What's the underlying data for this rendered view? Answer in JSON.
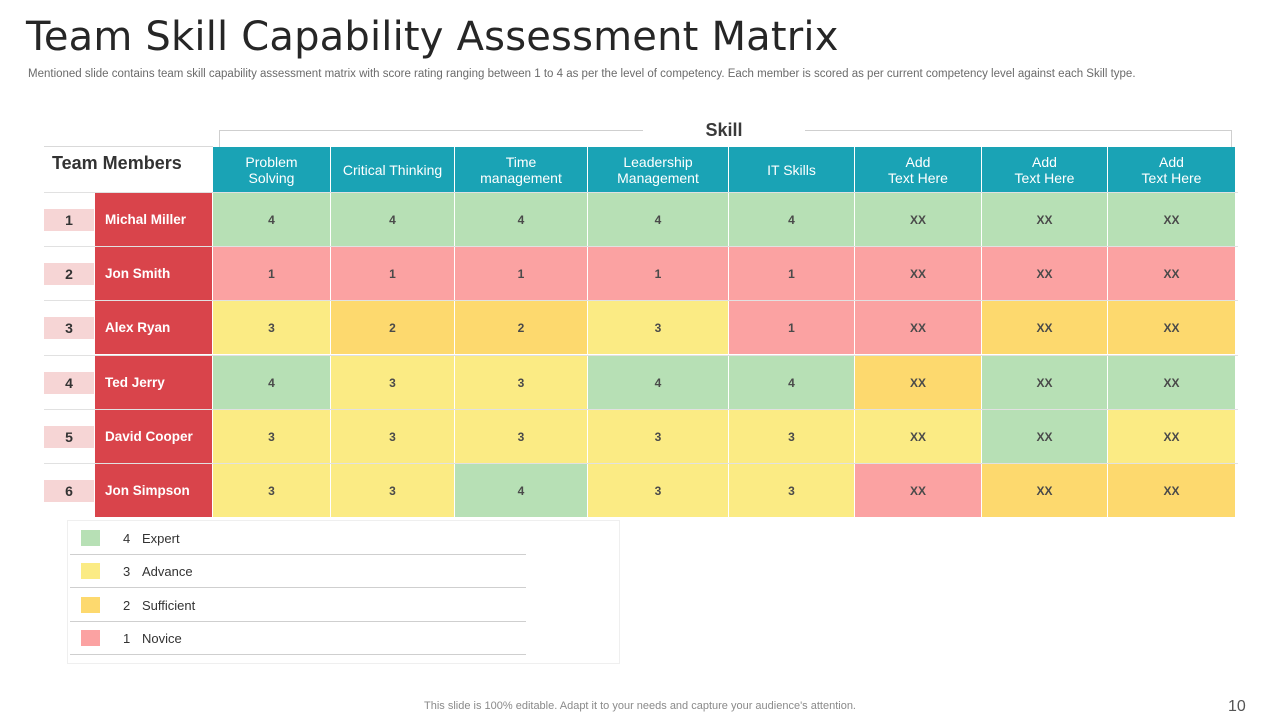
{
  "slide": {
    "title": "Team Skill Capability Assessment Matrix",
    "subtitle": "Mentioned slide contains team skill capability assessment matrix with score rating ranging between 1 to 4 as per the level of competency. Each member is scored as per current competency level against each Skill type.",
    "footer": "This slide is 100% editable. Adapt it to your needs and capture your audience's attention.",
    "page_number": "10"
  },
  "matrix": {
    "skill_label": "Skill",
    "members_header": "Team Members",
    "columns": [
      "Problem\nSolving",
      "Critical Thinking",
      "Time\nmanagement",
      "Leadership\nManagement",
      "IT Skills",
      "Add\nText Here",
      "Add\nText Here",
      "Add\nText Here"
    ],
    "rows": [
      {
        "num": "1",
        "name": "Michal Miller",
        "scores": [
          "4",
          "4",
          "4",
          "4",
          "4",
          "XX",
          "XX",
          "XX"
        ],
        "levels": [
          "4",
          "4",
          "4",
          "4",
          "4",
          "4",
          "4",
          "4"
        ]
      },
      {
        "num": "2",
        "name": "Jon Smith",
        "scores": [
          "1",
          "1",
          "1",
          "1",
          "1",
          "XX",
          "XX",
          "XX"
        ],
        "levels": [
          "1",
          "1",
          "1",
          "1",
          "1",
          "1",
          "1",
          "1"
        ]
      },
      {
        "num": "3",
        "name": "Alex Ryan",
        "scores": [
          "3",
          "2",
          "2",
          "3",
          "1",
          "XX",
          "XX",
          "XX"
        ],
        "levels": [
          "3",
          "2",
          "2",
          "3",
          "1",
          "1",
          "2",
          "2"
        ]
      },
      {
        "num": "4",
        "name": "Ted Jerry",
        "scores": [
          "4",
          "3",
          "3",
          "4",
          "4",
          "XX",
          "XX",
          "XX"
        ],
        "levels": [
          "4",
          "3",
          "3",
          "4",
          "4",
          "2",
          "4",
          "4"
        ]
      },
      {
        "num": "5",
        "name": "David Cooper",
        "scores": [
          "3",
          "3",
          "3",
          "3",
          "3",
          "XX",
          "XX",
          "XX"
        ],
        "levels": [
          "3",
          "3",
          "3",
          "3",
          "3",
          "3",
          "4",
          "3"
        ]
      },
      {
        "num": "6",
        "name": "Jon Simpson",
        "scores": [
          "3",
          "3",
          "4",
          "3",
          "3",
          "XX",
          "XX",
          "XX"
        ],
        "levels": [
          "3",
          "3",
          "4",
          "3",
          "3",
          "1",
          "2",
          "2"
        ]
      }
    ]
  },
  "legend": [
    {
      "num": "4",
      "label": "Expert",
      "color": "#b7e0b5"
    },
    {
      "num": "3",
      "label": "Advance",
      "color": "#fbeb84"
    },
    {
      "num": "2",
      "label": "Sufficient",
      "color": "#fdd96e"
    },
    {
      "num": "1",
      "label": "Novice",
      "color": "#fba2a2"
    }
  ]
}
